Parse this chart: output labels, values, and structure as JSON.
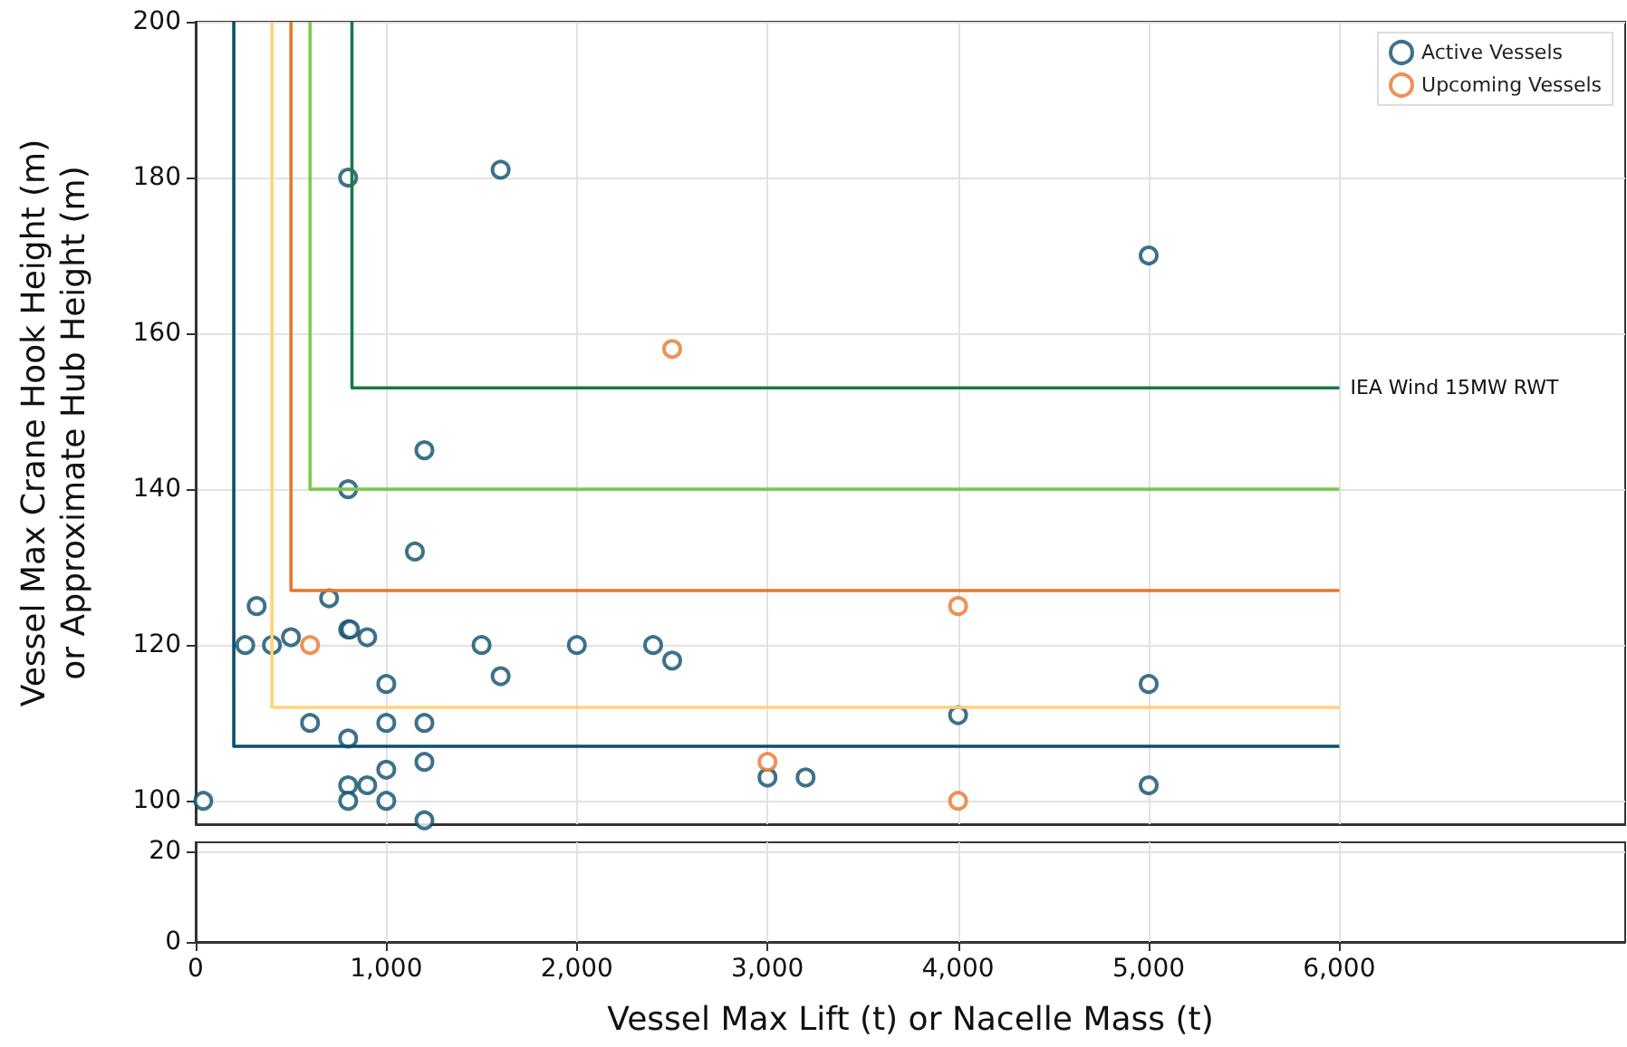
{
  "chart_data": [
    {
      "type": "scatter",
      "ylabel": "Vessel Max Crane Hook Height (m)\nor Approximate Hub Height (m)",
      "xlim": [
        0,
        7500
      ],
      "ylim": [
        97,
        200
      ],
      "yticks": [
        100,
        120,
        140,
        160,
        180,
        200
      ],
      "xticks": [
        0,
        1000,
        2000,
        3000,
        4000,
        5000,
        6000
      ],
      "tick_labels": "y",
      "grid": true,
      "legend": "top right",
      "marker": "circle",
      "series": [
        {
          "name": "Active Vessels",
          "color": "#0b4f6c",
          "x": [
            40,
            260,
            320,
            400,
            500,
            600,
            700,
            800,
            800,
            810,
            800,
            800,
            800,
            800,
            900,
            900,
            1000,
            1000,
            1000,
            1000,
            1150,
            1200,
            1200,
            1200,
            1200,
            1500,
            1600,
            1600,
            2000,
            2400,
            2500,
            3000,
            3200,
            4000,
            5000,
            5000,
            5000
          ],
          "values": [
            100,
            120,
            125,
            120,
            121,
            110,
            126,
            180,
            122,
            122,
            140,
            108,
            102,
            100,
            121,
            102,
            115,
            110,
            104,
            100,
            132,
            145,
            110,
            105,
            97.5,
            120,
            181,
            116,
            120,
            120,
            118,
            103,
            103,
            111,
            170,
            115,
            102
          ]
        },
        {
          "name": "Upcoming Vessels",
          "color": "#e8772e",
          "x": [
            600,
            2500,
            3000,
            4000,
            4000
          ],
          "values": [
            120,
            158,
            105,
            125,
            100
          ]
        },
        {
          "type": "line",
          "marker": "none",
          "color": "#0b4f6c",
          "x": [
            200,
            200,
            6000
          ],
          "values": [
            200,
            107,
            107
          ]
        },
        {
          "type": "line",
          "marker": "none",
          "color": "#ffd37a",
          "x": [
            400,
            400,
            6000
          ],
          "values": [
            200,
            112,
            112
          ]
        },
        {
          "type": "line",
          "marker": "none",
          "color": "#e8772e",
          "x": [
            500,
            500,
            6000
          ],
          "values": [
            200,
            127,
            127
          ]
        },
        {
          "type": "line",
          "marker": "none",
          "color": "#7ec850",
          "x": [
            600,
            600,
            6000
          ],
          "values": [
            200,
            140,
            140
          ]
        },
        {
          "type": "line",
          "marker": "none",
          "name": "IEA Wind 15MW RWT",
          "color": "#1a7a45",
          "x": [
            820,
            820,
            6000
          ],
          "values": [
            200,
            153,
            153
          ]
        }
      ]
    },
    {
      "type": "scatter",
      "xlabel": "Vessel Max Lift (t) or Nacelle Mass (t)",
      "xlim": [
        0,
        7500
      ],
      "ylim": [
        0,
        22
      ],
      "yticks": [
        0,
        20
      ],
      "xticks": [
        0,
        {
          "value": 1000,
          "label": "1,000"
        },
        {
          "value": 2000,
          "label": "2,000"
        },
        {
          "value": 3000,
          "label": "3,000"
        },
        {
          "value": 4000,
          "label": "4,000"
        },
        {
          "value": 5000,
          "label": "5,000"
        },
        {
          "value": 6000,
          "label": "6,000"
        }
      ],
      "grid": true
    }
  ]
}
